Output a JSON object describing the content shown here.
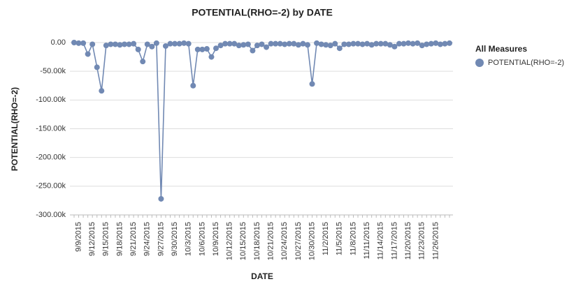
{
  "chart_data": {
    "type": "line",
    "title": "POTENTIAL(RHO=-2) by DATE",
    "x_label": "DATE",
    "y_label": "POTENTIAL(RHO=-2)",
    "legend_title": "All Measures",
    "legend_position": "right",
    "grid": true,
    "categories": [
      null,
      "9/9/2015",
      null,
      null,
      "9/12/2015",
      null,
      null,
      "9/15/2015",
      null,
      null,
      "9/18/2015",
      null,
      null,
      "9/21/2015",
      null,
      null,
      "9/24/2015",
      null,
      null,
      "9/27/2015",
      null,
      null,
      "9/30/2015",
      null,
      null,
      "10/3/2015",
      null,
      null,
      "10/6/2015",
      null,
      null,
      "10/9/2015",
      null,
      null,
      "10/12/2015",
      null,
      null,
      "10/15/2015",
      null,
      null,
      "10/18/2015",
      null,
      null,
      "10/21/2015",
      null,
      null,
      "10/24/2015",
      null,
      null,
      "10/27/2015",
      null,
      null,
      "10/30/2015",
      null,
      null,
      "11/2/2015",
      null,
      null,
      "11/5/2015",
      null,
      null,
      "11/8/2015",
      null,
      null,
      "11/11/2015",
      null,
      null,
      "11/14/2015",
      null,
      null,
      "11/17/2015",
      null,
      null,
      "11/20/2015",
      null,
      null,
      "11/23/2015",
      null,
      null,
      "11/26/2015",
      null,
      null,
      null
    ],
    "series": [
      {
        "name": "POTENTIAL(RHO=-2)",
        "color": "#7189b3",
        "values": [
          0,
          -1000,
          -1000,
          -20000,
          -3000,
          -43000,
          -84000,
          -5000,
          -3000,
          -3000,
          -4000,
          -3000,
          -3000,
          -2000,
          -12000,
          -33000,
          -3000,
          -7000,
          -1000,
          -272000,
          -6000,
          -2000,
          -2000,
          -2000,
          -1000,
          -2000,
          -75000,
          -12000,
          -12000,
          -11000,
          -25000,
          -10000,
          -5000,
          -2000,
          -2000,
          -2000,
          -5000,
          -4000,
          -3000,
          -14000,
          -5000,
          -3000,
          -8000,
          -2000,
          -2000,
          -2000,
          -3000,
          -2000,
          -2000,
          -4000,
          -2000,
          -4000,
          -72000,
          -1000,
          -3000,
          -4000,
          -5000,
          -2000,
          -10000,
          -3000,
          -3000,
          -2000,
          -2000,
          -3000,
          -2000,
          -4000,
          -2000,
          -2000,
          -2000,
          -4000,
          -7000,
          -2000,
          -2000,
          -1000,
          -2000,
          -1000,
          -5000,
          -3000,
          -2000,
          -1000,
          -3000,
          -2000,
          -1000
        ]
      }
    ],
    "ylim": [
      -300000,
      0
    ],
    "yticks": [
      {
        "value": 0,
        "label": "0.00"
      },
      {
        "value": -50000,
        "label": "-50.00k"
      },
      {
        "value": -100000,
        "label": "-100.00k"
      },
      {
        "value": -150000,
        "label": "-150.00k"
      },
      {
        "value": -200000,
        "label": "-200.00k"
      },
      {
        "value": -250000,
        "label": "-250.00k"
      },
      {
        "value": -300000,
        "label": "-300.00k"
      }
    ]
  }
}
